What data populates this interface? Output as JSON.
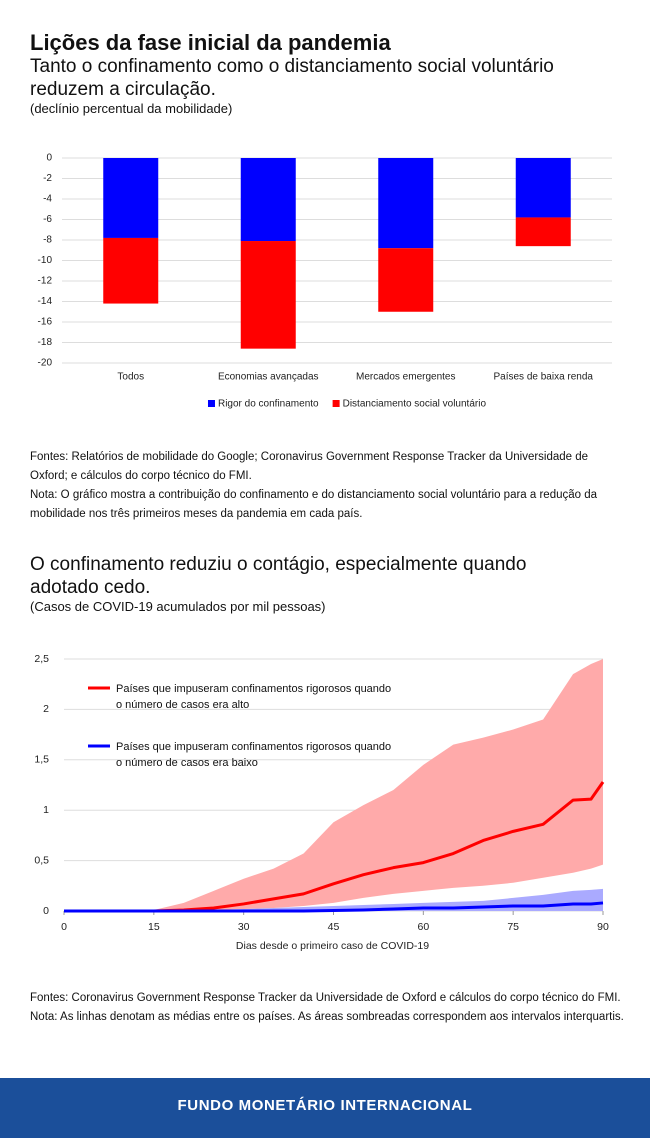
{
  "header": {
    "title": "Lições da fase inicial da pandemia"
  },
  "chart_data": [
    {
      "type": "bar",
      "stacked": true,
      "title": "Tanto o confinamento como o distanciamento social voluntário reduzem a circulação.",
      "subtitle": "(declínio percentual da mobilidade)",
      "categories": [
        "Todos",
        "Economias avançadas",
        "Mercados emergentes",
        "Países de baixa renda"
      ],
      "series": [
        {
          "name": "Rigor do confinamento",
          "color": "#0000ff",
          "values": [
            -7.8,
            -8.1,
            -8.8,
            -5.8
          ]
        },
        {
          "name": "Distanciamento social voluntário",
          "color": "#ff0000",
          "values": [
            -6.4,
            -10.5,
            -6.2,
            -2.8
          ]
        }
      ],
      "ylim": [
        -20,
        0
      ],
      "yticks": [
        0,
        -2,
        -4,
        -6,
        -8,
        -10,
        -12,
        -14,
        -16,
        -18,
        -20
      ],
      "grid": true,
      "legend": "bottom",
      "source": "Fontes: Relatórios de mobilidade do Google; Coronavirus Government Response Tracker da Universidade de Oxford; e cálculos do corpo técnico do FMI.",
      "note": "Nota: O gráfico mostra a contribuição do confinamento e do distanciamento social voluntário para a redução da mobilidade nos três primeiros meses da pandemia em cada país."
    },
    {
      "type": "line",
      "title": "O confinamento reduziu o contágio, especialmente quando adotado cedo.",
      "subtitle": "(Casos de COVID-19 acumulados por mil pessoas)",
      "x": [
        0,
        5,
        10,
        15,
        20,
        25,
        30,
        35,
        40,
        45,
        50,
        55,
        60,
        65,
        70,
        75,
        80,
        85,
        88,
        90
      ],
      "series": [
        {
          "name": "Países que impuseram confinamentos rigorosos quando o número de casos era alto",
          "color": "#ff0000",
          "band_color": "#ffaaaa",
          "values": [
            0,
            0,
            0,
            0,
            0.01,
            0.03,
            0.07,
            0.12,
            0.17,
            0.27,
            0.36,
            0.43,
            0.48,
            0.57,
            0.7,
            0.79,
            0.86,
            1.1,
            1.11,
            1.28
          ],
          "lower": [
            0,
            0,
            0,
            0,
            0,
            0.01,
            0.02,
            0.03,
            0.05,
            0.08,
            0.13,
            0.17,
            0.2,
            0.23,
            0.25,
            0.28,
            0.33,
            0.38,
            0.42,
            0.46
          ],
          "upper": [
            0,
            0,
            0,
            0.01,
            0.08,
            0.2,
            0.32,
            0.42,
            0.57,
            0.88,
            1.05,
            1.2,
            1.45,
            1.65,
            1.72,
            1.8,
            1.9,
            2.35,
            2.45,
            2.5
          ]
        },
        {
          "name": "Países que impuseram confinamentos rigorosos quando o número de casos era baixo",
          "color": "#0000ff",
          "band_color": "#aaaaff",
          "values": [
            0,
            0,
            0,
            0,
            0,
            0,
            0,
            0,
            0,
            0.005,
            0.01,
            0.02,
            0.03,
            0.03,
            0.04,
            0.05,
            0.05,
            0.07,
            0.07,
            0.08
          ],
          "lower": [
            0,
            0,
            0,
            0,
            0,
            0,
            0,
            0,
            0,
            0,
            0,
            0,
            0,
            0,
            0,
            0,
            0,
            0,
            0,
            0
          ],
          "upper": [
            0,
            0,
            0,
            0,
            0.01,
            0.01,
            0.02,
            0.03,
            0.04,
            0.05,
            0.06,
            0.07,
            0.08,
            0.09,
            0.1,
            0.13,
            0.16,
            0.2,
            0.21,
            0.22
          ]
        }
      ],
      "xlim": [
        0,
        90
      ],
      "xticks": [
        0,
        15,
        30,
        45,
        60,
        75,
        90
      ],
      "ylim": [
        0,
        2.5
      ],
      "yticks": [
        0,
        {
          "value": 0.5,
          "label": "0,5"
        },
        1,
        {
          "value": 1.5,
          "label": "1,5"
        },
        2,
        {
          "value": 2.5,
          "label": "2,5"
        }
      ],
      "xlabel": "Dias desde o primeiro caso de COVID-19",
      "grid": true,
      "legend": "top-left",
      "source": "Fontes: Coronavirus Government Response Tracker da Universidade de Oxford e cálculos do corpo técnico do FMI.",
      "note": "Nota: As linhas denotam as médias entre os países. As áreas sombreadas correspondem aos intervalos interquartis."
    }
  ],
  "footer": {
    "text": "FUNDO MONETÁRIO INTERNACIONAL"
  }
}
